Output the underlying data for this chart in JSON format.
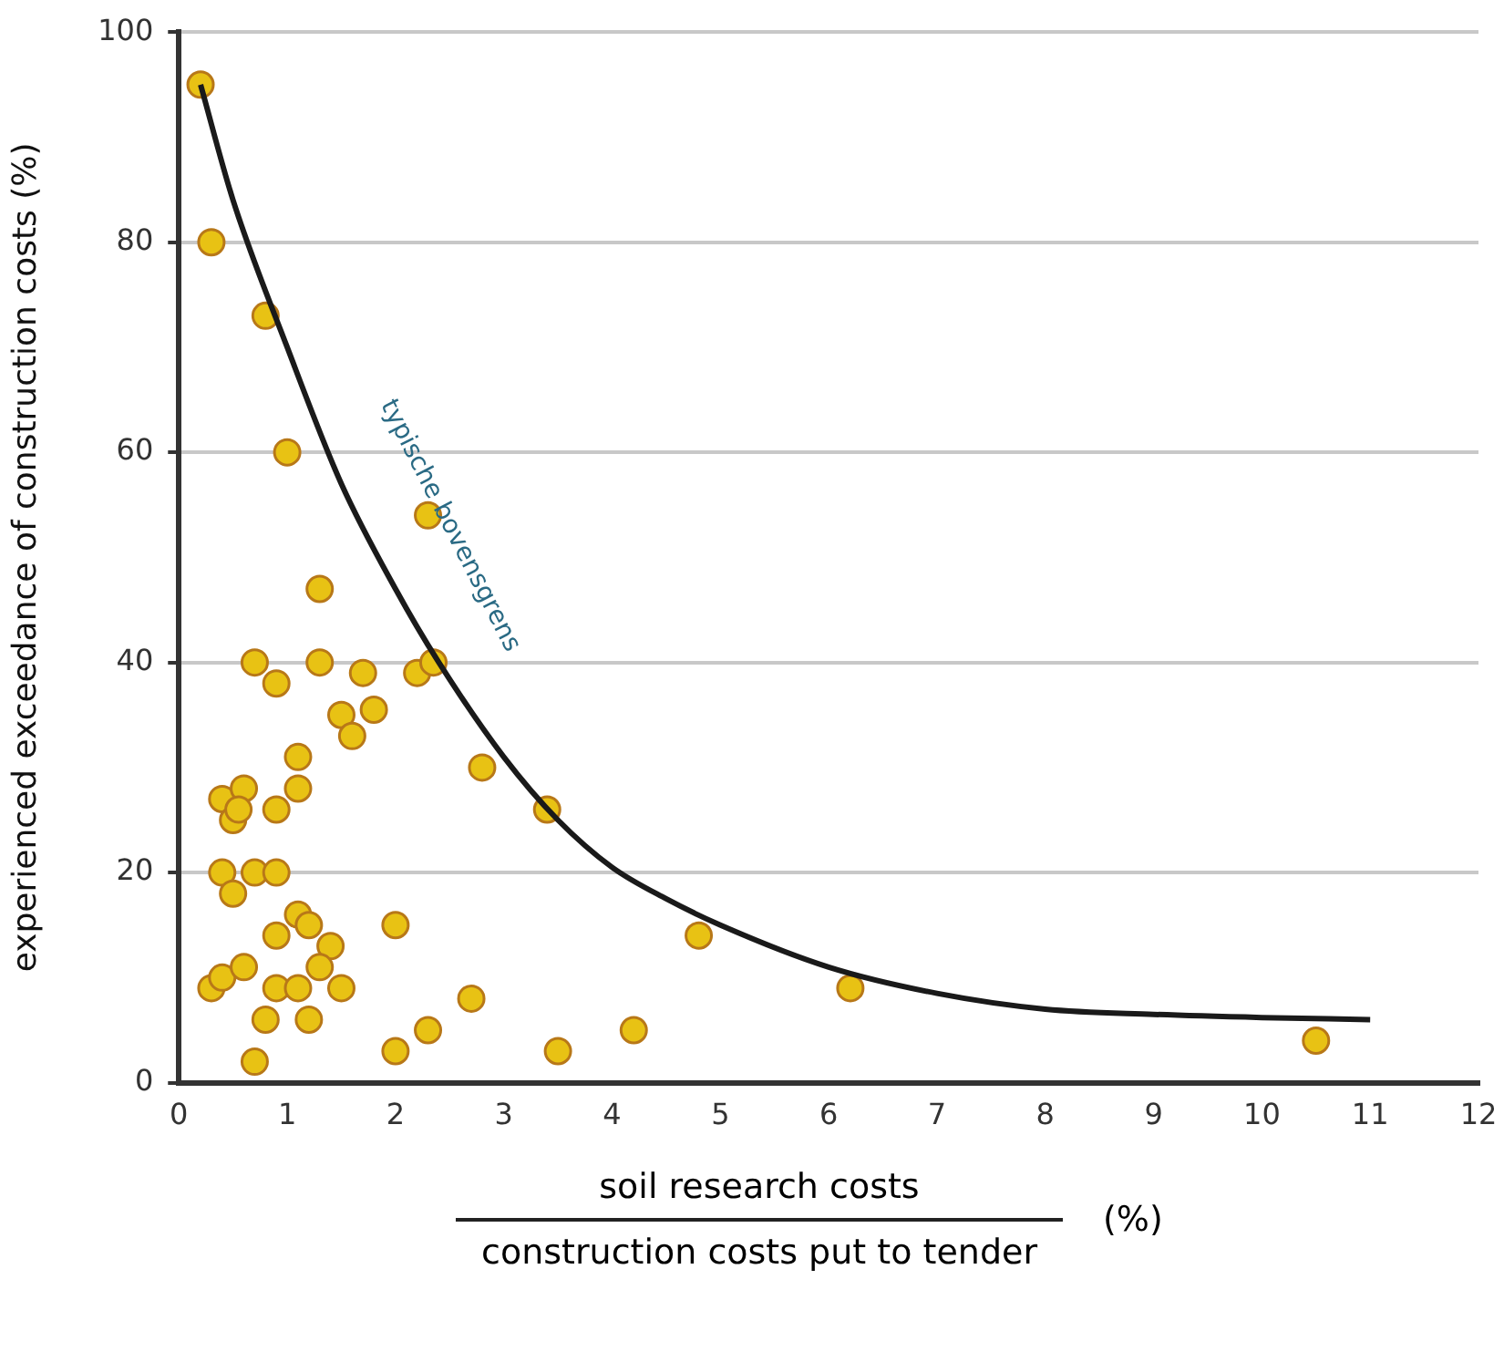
{
  "chart_data": {
    "type": "scatter",
    "xlabel": "soil research costs",
    "ylabel": "experienced exceedance of construction costs (%)",
    "xlim": [
      0,
      12
    ],
    "xticks": [
      0,
      1,
      2,
      3,
      4,
      5,
      6,
      7,
      8,
      9,
      10,
      11,
      12
    ],
    "ylim": [
      0,
      100
    ],
    "yticks": [
      0,
      20,
      40,
      60,
      80,
      100
    ],
    "grid": "y",
    "marker": "circle",
    "series": [
      {
        "color": "#e8c214",
        "x": [
          0.2,
          0.3,
          0.8,
          1.0,
          2.3,
          1.3,
          0.7,
          1.3,
          0.9,
          1.7,
          2.2,
          2.35,
          1.5,
          1.8,
          1.6,
          1.1,
          2.8,
          1.1,
          0.4,
          0.6,
          0.5,
          0.55,
          0.9,
          3.4,
          0.4,
          0.7,
          0.9,
          0.5,
          1.1,
          1.2,
          2.0,
          0.9,
          1.4,
          4.8,
          1.3,
          0.3,
          0.4,
          0.6,
          0.9,
          1.1,
          1.5,
          6.2,
          0.8,
          1.2,
          2.7,
          2.3,
          4.2,
          2.0,
          3.5,
          0.7,
          10.5
        ],
        "values": [
          95,
          80,
          73,
          60,
          54,
          47,
          40,
          40,
          38,
          39,
          39,
          40,
          35,
          35.5,
          33,
          31,
          30,
          28,
          27,
          28,
          25,
          26,
          26,
          26,
          20,
          20,
          20,
          18,
          16,
          15,
          15,
          14,
          13,
          14,
          11,
          9,
          10,
          11,
          9,
          9,
          9,
          9,
          6,
          6,
          8,
          5,
          5,
          3,
          3,
          2,
          4
        ]
      },
      {
        "type": "line",
        "color": "#1a1a1a",
        "marker": "none",
        "x": [
          0.2,
          0.5,
          1,
          1.5,
          2,
          2.4,
          3,
          3.5,
          4,
          4.5,
          5,
          6,
          7,
          8,
          9,
          10,
          11
        ],
        "values": [
          95,
          84,
          70,
          57,
          47,
          40,
          31,
          25,
          20.5,
          17.5,
          15,
          11,
          8.5,
          7,
          6.5,
          6.2,
          6
        ]
      }
    ],
    "annotations": [
      {
        "text": "typische bovensgrens",
        "x": 2.5,
        "y": 53
      },
      "construction costs put to tender",
      "(%)"
    ]
  }
}
